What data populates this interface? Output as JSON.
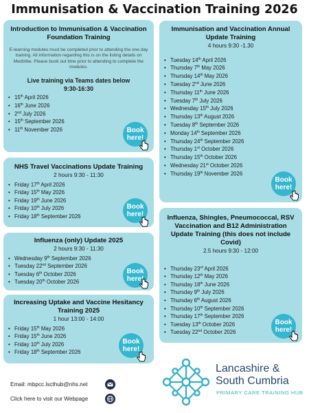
{
  "page_title": "Immunisation & Vaccination Training 2026",
  "book_label": [
    "Book",
    "here!"
  ],
  "intro": {
    "title": "Introduction to Immunisation & Vaccination Foundation Training",
    "description": "E-learning modules must be completed prior to attending the one day training. All information regarding this is on the listing details on Medtribe. Please book out time prior to attending to complete the modules.",
    "live_heading": "Live training via Teams dates below",
    "live_time": "9:30-16:30",
    "dates": [
      {
        "pre": "15",
        "sup": "th",
        "post": " April 2026"
      },
      {
        "pre": "16",
        "sup": "th",
        "post": " June 2026"
      },
      {
        "pre": "2",
        "sup": "nd",
        "post": " July 2026"
      },
      {
        "pre": "15",
        "sup": "th",
        "post": " September 2026"
      },
      {
        "pre": "11",
        "sup": "th",
        "post": " November 2026"
      }
    ]
  },
  "travel": {
    "title": "NHS Travel Vaccinations Update Training",
    "time": "2 hours 9:30 - 11:30",
    "dates": [
      {
        "pre": "Friday 17",
        "sup": "th",
        "post": " April 2026"
      },
      {
        "pre": "Friday 15",
        "sup": "th",
        "post": " May 2026"
      },
      {
        "pre": "Friday 19",
        "sup": "th",
        "post": " June 2026"
      },
      {
        "pre": "Friday 10",
        "sup": "th",
        "post": " July 2026"
      },
      {
        "pre": "Friday 18",
        "sup": "th",
        "post": " September 2026"
      }
    ]
  },
  "influenza": {
    "title": "Influenza (only) Update  2025",
    "time": "2 hours 9:30 - 11:30",
    "dates": [
      {
        "pre": "Wednesday 9",
        "sup": "th",
        "post": " September 2026"
      },
      {
        "pre": "Tuesday 22",
        "sup": "nd",
        "post": " September 2026"
      },
      {
        "pre": "Tuesday 6",
        "sup": "th",
        "post": " October 2026"
      },
      {
        "pre": "Tuesday 20",
        "sup": "th",
        "post": " October 2026"
      }
    ]
  },
  "uptake": {
    "title": "Increasing Uptake and Vaccine Hesitancy Training 2025",
    "time": "1 hour 13:00 - 14:00",
    "dates": [
      {
        "pre": "Friday 15",
        "sup": "th",
        "post": " May 2026"
      },
      {
        "pre": "Friday 15",
        "sup": "th",
        "post": " June 2026"
      },
      {
        "pre": "Friday 10",
        "sup": "th",
        "post": " July 2026"
      },
      {
        "pre": "Friday 18",
        "sup": "th",
        "post": " September 2026"
      }
    ]
  },
  "annual": {
    "title": "Immunisation and Vaccination Annual Update Training",
    "time": "4 hours 9:30 -1.30",
    "dates": [
      {
        "pre": "Tuesday 14",
        "sup": "th",
        "post": " April 2026"
      },
      {
        "pre": "Thursday 7",
        "sup": "th",
        "post": " May 2026"
      },
      {
        "pre": "Thursday 14",
        "sup": "th",
        "post": " May 2026"
      },
      {
        "pre": "Tuesday 2",
        "sup": "nd",
        "post": " June 2026"
      },
      {
        "pre": "Thursday 11",
        "sup": "th",
        "post": " June 2026"
      },
      {
        "pre": "Tuesday 7",
        "sup": "th",
        "post": " July 2026"
      },
      {
        "pre": "Wednesday 15",
        "sup": "th",
        "post": " July 2026"
      },
      {
        "pre": "Thursday 13",
        "sup": "th",
        "post": " August 2026"
      },
      {
        "pre": "Tuesday 8",
        "sup": "th",
        "post": " September 2026"
      },
      {
        "pre": "Monday 14",
        "sup": "th",
        "post": " September 2026"
      },
      {
        "pre": "Thursday 24",
        "sup": "th",
        "post": " September 2026"
      },
      {
        "pre": "Thursday 1",
        "sup": "st",
        "post": " October 2026"
      },
      {
        "pre": "Thursday 15",
        "sup": "th",
        "post": " October 2026"
      },
      {
        "pre": "Wednesday 21",
        "sup": "st",
        "post": " October 2026"
      },
      {
        "pre": "Thursday 19",
        "sup": "th",
        "post": " November 2026"
      }
    ]
  },
  "shingles": {
    "title": "Influenza, Shingles, Pneumococcal, RSV Vaccination and B12 Administration Update Training (this does not include Covid)",
    "time": "2.5 hours 9:30 - 12:00",
    "dates": [
      {
        "pre": "Thursday 23",
        "sup": "rd",
        "post": " April 2026"
      },
      {
        "pre": "Thursday 12",
        "sup": "th",
        "post": " May 2026"
      },
      {
        "pre": "Thursday 18",
        "sup": "th",
        "post": " June 2026"
      },
      {
        "pre": "Thursday 9",
        "sup": "th",
        "post": " July 2026"
      },
      {
        "pre": "Thursday 6",
        "sup": "th",
        "post": " August 2026"
      },
      {
        "pre": "Thursday 10",
        "sup": "th",
        "post": " September 2026"
      },
      {
        "pre": "Thursday 17",
        "sup": "th",
        "post": " September 2026"
      },
      {
        "pre": "Tuesday 13",
        "sup": "th",
        "post": " October 2026"
      },
      {
        "pre": "Tuesday 22",
        "sup": "nd",
        "post": " October 2026"
      }
    ]
  },
  "footer": {
    "email_text": "Email: mbpcc.lscthub@nhs.net",
    "web_text": "Click here to visit our Webpage",
    "logo_line1": "Lancashire &",
    "logo_line2": "South Cumbria",
    "logo_tagline": "PRIMARY CARE TRAINING HUB"
  },
  "colors": {
    "card": "#a8dde6",
    "button": "#35b6cf",
    "logo_text": "#24466b",
    "tagline": "#37aeca"
  },
  "icons": {
    "button_cursor": "pointing-hand-icon",
    "email": "envelope-icon",
    "web": "globe-icon",
    "logo": "network-cross-icon"
  }
}
